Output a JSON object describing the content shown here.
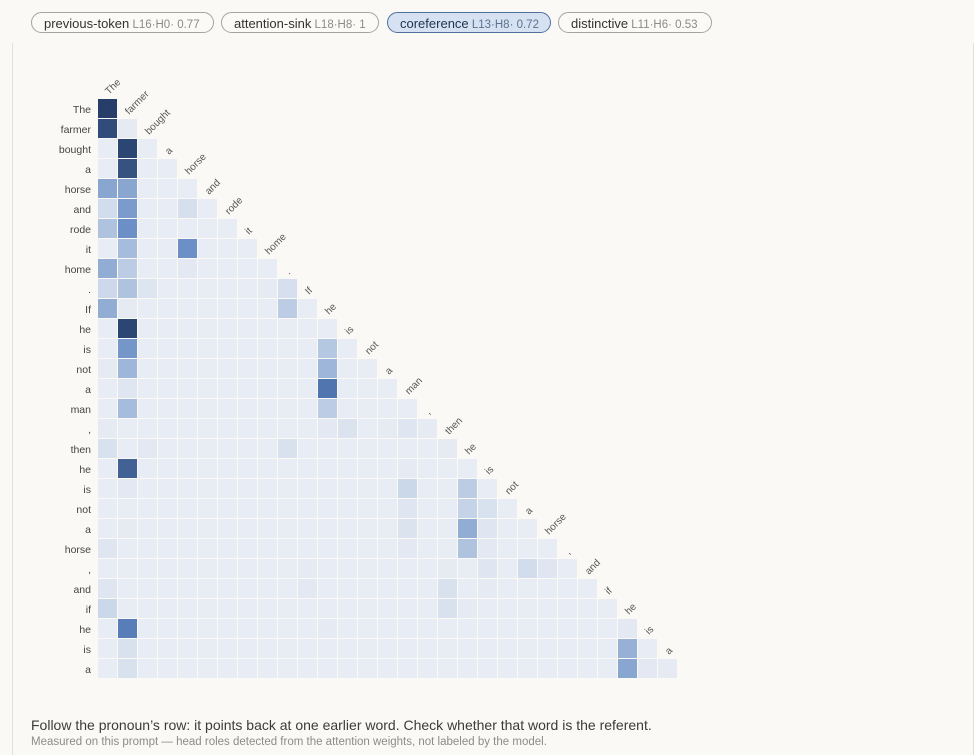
{
  "tabs": [
    {
      "name": "previous-token",
      "meta": "L16·H0· 0.77",
      "active": false
    },
    {
      "name": "attention-sink",
      "meta": "L18·H8· 1",
      "active": false
    },
    {
      "name": "coreference",
      "meta": "L13·H8· 0.72",
      "active": true
    },
    {
      "name": "distinctive",
      "meta": "L11·H6· 0.53",
      "active": false
    }
  ],
  "chart_data": {
    "type": "heatmap",
    "tokens": [
      "The",
      "farmer",
      "bought",
      "a",
      "horse",
      "and",
      "rode",
      "it",
      "home",
      ".",
      "If",
      "he",
      "is",
      "not",
      "a",
      "man",
      ",",
      "then",
      "he",
      "is",
      "not",
      "a",
      "horse",
      ",",
      "and",
      "if",
      "he",
      "is",
      "a"
    ],
    "matrix": [
      [
        1.0
      ],
      [
        0.9,
        0.1
      ],
      [
        0.04,
        0.92,
        0.04
      ],
      [
        0.06,
        0.88,
        0.05,
        0.05
      ],
      [
        0.55,
        0.55,
        0.08,
        0.06,
        0.06
      ],
      [
        0.25,
        0.6,
        0.08,
        0.06,
        0.22,
        0.06
      ],
      [
        0.42,
        0.65,
        0.07,
        0.06,
        0.06,
        0.08,
        0.06
      ],
      [
        0.08,
        0.45,
        0.07,
        0.06,
        0.65,
        0.06,
        0.06,
        0.06
      ],
      [
        0.52,
        0.38,
        0.08,
        0.06,
        0.12,
        0.06,
        0.06,
        0.06,
        0.06
      ],
      [
        0.28,
        0.42,
        0.16,
        0.06,
        0.06,
        0.06,
        0.06,
        0.06,
        0.1,
        0.22
      ],
      [
        0.52,
        0.1,
        0.06,
        0.05,
        0.05,
        0.05,
        0.05,
        0.05,
        0.05,
        0.38,
        0.06
      ],
      [
        0.04,
        0.92,
        0.04,
        0.04,
        0.04,
        0.04,
        0.04,
        0.04,
        0.04,
        0.04,
        0.04,
        0.04
      ],
      [
        0.08,
        0.62,
        0.06,
        0.05,
        0.08,
        0.05,
        0.05,
        0.05,
        0.05,
        0.05,
        0.05,
        0.4,
        0.06
      ],
      [
        0.1,
        0.48,
        0.07,
        0.05,
        0.05,
        0.05,
        0.05,
        0.05,
        0.05,
        0.05,
        0.05,
        0.48,
        0.08,
        0.05
      ],
      [
        0.06,
        0.15,
        0.05,
        0.05,
        0.05,
        0.05,
        0.05,
        0.05,
        0.05,
        0.05,
        0.05,
        0.75,
        0.08,
        0.06,
        0.06
      ],
      [
        0.06,
        0.45,
        0.05,
        0.05,
        0.05,
        0.05,
        0.05,
        0.05,
        0.05,
        0.05,
        0.05,
        0.38,
        0.06,
        0.05,
        0.06,
        0.06
      ],
      [
        0.1,
        0.08,
        0.06,
        0.05,
        0.05,
        0.05,
        0.05,
        0.05,
        0.05,
        0.05,
        0.05,
        0.12,
        0.18,
        0.08,
        0.1,
        0.15,
        0.1
      ],
      [
        0.2,
        0.08,
        0.12,
        0.05,
        0.05,
        0.05,
        0.05,
        0.05,
        0.05,
        0.2,
        0.05,
        0.06,
        0.06,
        0.06,
        0.06,
        0.06,
        0.06,
        0.1
      ],
      [
        0.06,
        0.82,
        0.05,
        0.05,
        0.05,
        0.05,
        0.05,
        0.05,
        0.05,
        0.05,
        0.05,
        0.06,
        0.06,
        0.05,
        0.05,
        0.1,
        0.05,
        0.05,
        0.06
      ],
      [
        0.06,
        0.12,
        0.05,
        0.05,
        0.05,
        0.05,
        0.05,
        0.05,
        0.05,
        0.05,
        0.05,
        0.08,
        0.06,
        0.05,
        0.05,
        0.3,
        0.05,
        0.05,
        0.38,
        0.08
      ],
      [
        0.08,
        0.08,
        0.05,
        0.05,
        0.05,
        0.05,
        0.05,
        0.05,
        0.05,
        0.05,
        0.05,
        0.06,
        0.06,
        0.05,
        0.05,
        0.15,
        0.05,
        0.05,
        0.35,
        0.2,
        0.05
      ],
      [
        0.06,
        0.1,
        0.05,
        0.05,
        0.05,
        0.05,
        0.05,
        0.05,
        0.05,
        0.05,
        0.05,
        0.06,
        0.05,
        0.05,
        0.05,
        0.18,
        0.05,
        0.05,
        0.52,
        0.14,
        0.08,
        0.06
      ],
      [
        0.15,
        0.06,
        0.05,
        0.05,
        0.05,
        0.05,
        0.05,
        0.05,
        0.05,
        0.05,
        0.05,
        0.06,
        0.05,
        0.05,
        0.05,
        0.12,
        0.05,
        0.05,
        0.42,
        0.12,
        0.05,
        0.06,
        0.05
      ],
      [
        0.06,
        0.06,
        0.05,
        0.05,
        0.05,
        0.05,
        0.05,
        0.05,
        0.05,
        0.05,
        0.1,
        0.06,
        0.05,
        0.05,
        0.05,
        0.06,
        0.05,
        0.1,
        0.06,
        0.15,
        0.08,
        0.25,
        0.15,
        0.06
      ],
      [
        0.14,
        0.06,
        0.05,
        0.05,
        0.05,
        0.05,
        0.05,
        0.05,
        0.05,
        0.05,
        0.12,
        0.06,
        0.05,
        0.05,
        0.05,
        0.06,
        0.05,
        0.2,
        0.06,
        0.1,
        0.08,
        0.06,
        0.06,
        0.06,
        0.06
      ],
      [
        0.3,
        0.06,
        0.05,
        0.05,
        0.05,
        0.05,
        0.05,
        0.05,
        0.05,
        0.05,
        0.05,
        0.06,
        0.08,
        0.05,
        0.05,
        0.06,
        0.06,
        0.2,
        0.1,
        0.06,
        0.05,
        0.05,
        0.05,
        0.05,
        0.06,
        0.06
      ],
      [
        0.06,
        0.72,
        0.05,
        0.05,
        0.05,
        0.05,
        0.05,
        0.05,
        0.05,
        0.05,
        0.05,
        0.1,
        0.05,
        0.05,
        0.05,
        0.06,
        0.05,
        0.05,
        0.06,
        0.05,
        0.05,
        0.05,
        0.05,
        0.05,
        0.05,
        0.05,
        0.12
      ],
      [
        0.06,
        0.2,
        0.05,
        0.05,
        0.05,
        0.05,
        0.05,
        0.05,
        0.05,
        0.05,
        0.05,
        0.06,
        0.05,
        0.05,
        0.05,
        0.06,
        0.05,
        0.05,
        0.08,
        0.05,
        0.05,
        0.05,
        0.06,
        0.05,
        0.05,
        0.05,
        0.5,
        0.08
      ],
      [
        0.06,
        0.2,
        0.05,
        0.05,
        0.05,
        0.05,
        0.05,
        0.05,
        0.05,
        0.05,
        0.05,
        0.06,
        0.05,
        0.05,
        0.05,
        0.06,
        0.05,
        0.05,
        0.08,
        0.05,
        0.05,
        0.05,
        0.06,
        0.05,
        0.05,
        0.05,
        0.55,
        0.12,
        0.1
      ]
    ]
  },
  "footer": {
    "instruction": "Follow the pronoun’s row: it points back at one earlier word. Check whether that word is the referent.",
    "note": "Measured on this prompt — head roles detected from the attention weights, not labeled by the model."
  }
}
